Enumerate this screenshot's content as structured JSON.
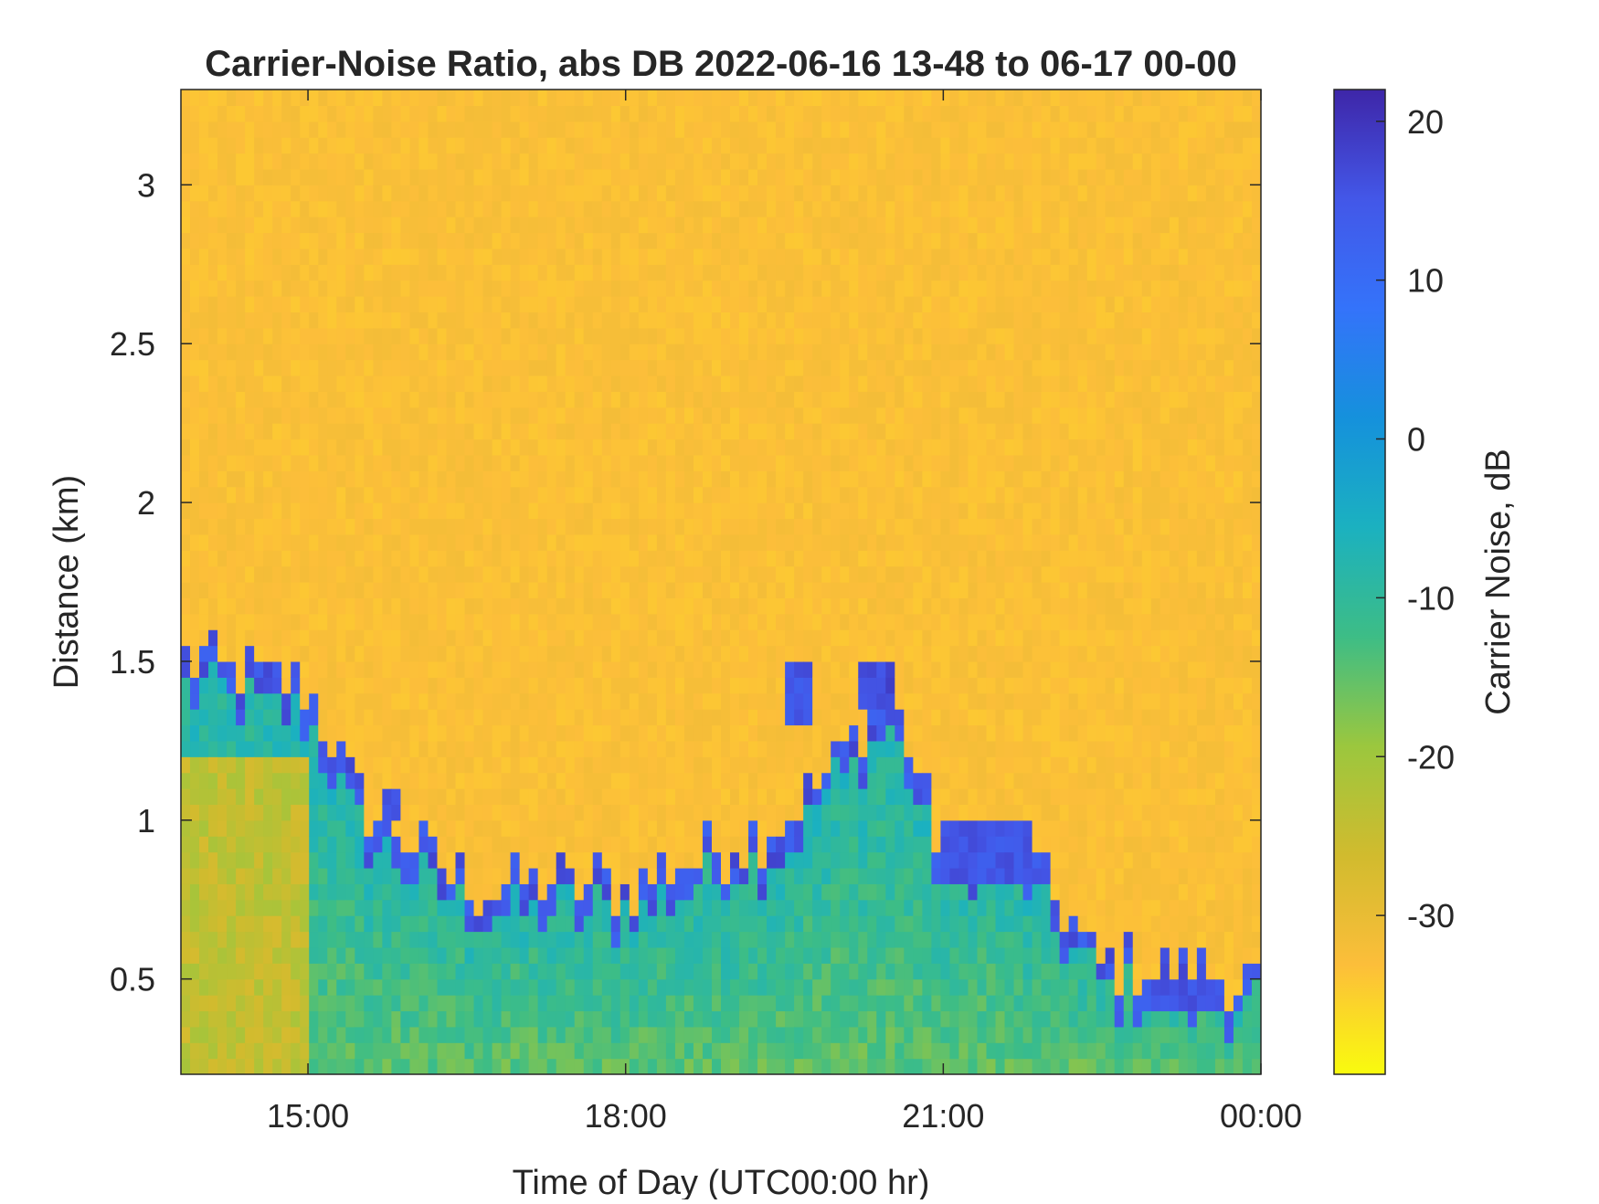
{
  "chart_data": {
    "type": "heatmap",
    "title": "Carrier-Noise Ratio, abs DB 2022-06-16 13-48 to 06-17 00-00",
    "xlabel": "Time of Day (UTC00:00 hr)",
    "ylabel": "Distance (km)",
    "xlim": [
      "13:48",
      "00:00"
    ],
    "ylim": [
      0.2,
      3.3
    ],
    "x_ticks": [
      "15:00",
      "18:00",
      "21:00",
      "00:00"
    ],
    "y_ticks": [
      "0.5",
      "1",
      "1.5",
      "2",
      "2.5",
      "3"
    ],
    "grid": false,
    "colorbar": {
      "label": "Carrier Noise, dB",
      "range": [
        -40,
        22
      ],
      "ticks": [
        "-30",
        "-20",
        "-10",
        "0",
        "10",
        "20"
      ],
      "colormap": "parula",
      "colors": [
        "#f9fb0e",
        "#fcbe3a",
        "#d1bb2e",
        "#9bc73e",
        "#3dbd86",
        "#1bb1c0",
        "#1591dc",
        "#3473fa",
        "#4357e8",
        "#3e26a8"
      ]
    },
    "description_features": {
      "background_value_db": -33,
      "near_range_value_db": -15,
      "boundary_layer_top_km": [
        {
          "time": "14:00",
          "km": 1.5
        },
        {
          "time": "15:00",
          "km": 1.4
        },
        {
          "time": "15:30",
          "km": 1.05
        },
        {
          "time": "16:30",
          "km": 0.8
        },
        {
          "time": "18:00",
          "km": 0.8
        },
        {
          "time": "19:30",
          "km": 1.0
        },
        {
          "time": "20:30",
          "km": 1.4
        },
        {
          "time": "21:00",
          "km": 0.9
        },
        {
          "time": "21:30",
          "km": 1.0
        },
        {
          "time": "22:30",
          "km": 0.55
        },
        {
          "time": "00:00",
          "km": 0.5
        }
      ],
      "strong_layers": [
        {
          "t_start": "19:30",
          "t_end": "19:45",
          "km_low": 1.3,
          "km_high": 1.5,
          "value_db": 15
        },
        {
          "t_start": "20:10",
          "t_end": "20:30",
          "km_low": 1.35,
          "km_high": 1.5,
          "value_db": 17
        },
        {
          "t_start": "15:40",
          "t_end": "15:50",
          "km_low": 1.0,
          "km_high": 1.08,
          "value_db": 15
        },
        {
          "t_start": "21:00",
          "t_end": "21:50",
          "km_low": 0.8,
          "km_high": 1.0,
          "value_db": 15
        },
        {
          "t_start": "23:00",
          "t_end": "23:40",
          "km_low": 0.42,
          "km_high": 0.5,
          "value_db": 15
        }
      ]
    }
  }
}
